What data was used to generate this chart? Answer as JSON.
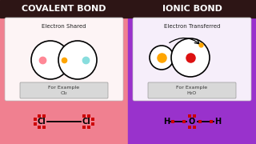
{
  "bg_left": "#f08090",
  "bg_right": "#9932CC",
  "title_bg": "#2d1515",
  "title_left": "COVALENT BOND",
  "title_right": "IONIC BOND",
  "title_color": "#ffffff",
  "subtitle_left": "Electron Shared",
  "subtitle_right": "Electron Transferred",
  "example_left": "For Example",
  "example_left2": "Cl₂",
  "example_right": "For Example",
  "example_right2": "H₂O",
  "dot_color": "#cc0000",
  "pink_dot": "#FF8896",
  "cyan_dot": "#88DDDD",
  "orange_dot": "#FFA500",
  "red_dot": "#DD1111"
}
